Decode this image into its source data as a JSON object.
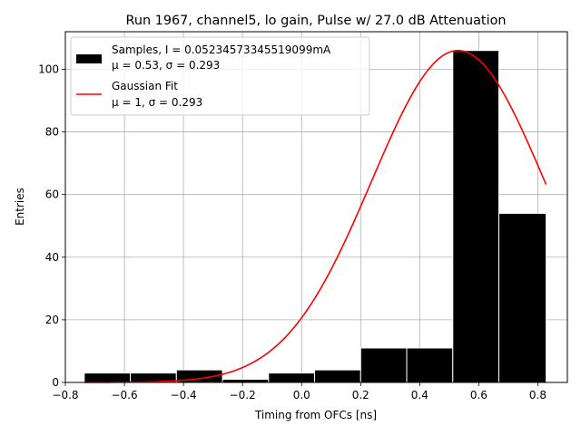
{
  "chart_data": {
    "type": "bar",
    "title": "Run 1967, channel5, lo gain, Pulse w/ 27.0 dB Attenuation",
    "xlabel": "Timing from OFCs [ns]",
    "ylabel": "Entries",
    "xlim": [
      -0.8,
      0.9
    ],
    "ylim": [
      0,
      112
    ],
    "grid": true,
    "x_ticks": [
      -0.8,
      -0.6,
      -0.4,
      -0.2,
      0.0,
      0.2,
      0.4,
      0.6,
      0.8
    ],
    "x_tick_labels": [
      "−0.8",
      "−0.6",
      "−0.4",
      "−0.2",
      "0.0",
      "0.2",
      "0.4",
      "0.6",
      "0.8"
    ],
    "y_ticks": [
      0,
      20,
      40,
      60,
      80,
      100
    ],
    "y_tick_labels": [
      "0",
      "20",
      "40",
      "60",
      "80",
      "100"
    ],
    "histogram": {
      "name": "Samples, I = 0.05234573345519099mA",
      "stats": "μ = 0.53, σ = 0.293",
      "color": "#000000",
      "edge_color": "#ffffff",
      "bin_edges": [
        -0.736,
        -0.58,
        -0.424,
        -0.268,
        -0.112,
        0.044,
        0.2,
        0.356,
        0.512,
        0.668,
        0.828
      ],
      "counts": [
        3,
        3,
        4,
        1,
        3,
        4,
        11,
        11,
        106,
        54
      ]
    },
    "fit": {
      "name": "Gaussian Fit",
      "stats": "μ = 1, σ = 0.293",
      "color": "#ff0000",
      "amplitude": 106,
      "mean": 0.53,
      "sigma": 0.293,
      "x_range": [
        -0.736,
        0.828
      ]
    },
    "legend_position": "top-left"
  }
}
